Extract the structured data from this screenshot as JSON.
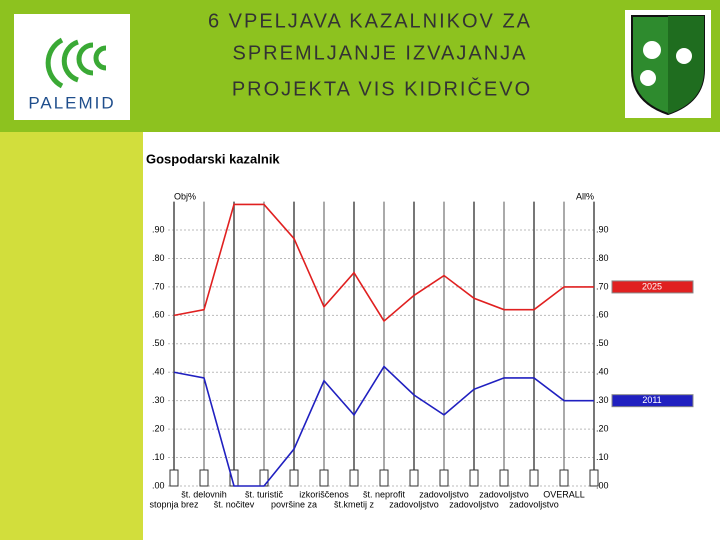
{
  "header": {
    "title_lines": [
      "6 VPELJAVA KAZALNIKOV ZA",
      "SPREMLJANJE IZVAJANJA",
      "PROJEKTA  VIS  KIDRIČEVO"
    ],
    "logo": "PALEMID"
  },
  "chart_data": {
    "type": "line",
    "title": "Gospodarski kazalnik",
    "y_label": "Obj%",
    "y2_label": "All%",
    "categories": [
      "stopnja brez",
      "št. delovnih",
      "št. nočitev",
      "št. turistič",
      "površine za",
      "izkoriščenos",
      "št.kmetij z",
      "št. neprofit",
      "zadovoljstvo",
      "zadovoljstvo",
      "zadovoljstvo",
      "zadovoljstvo",
      "zadovoljstvo",
      "OVERALL",
      null
    ],
    "series": [
      {
        "name": "2025",
        "color": "#e02020",
        "values": [
          0.6,
          0.62,
          0.99,
          0.99,
          0.87,
          0.63,
          0.75,
          0.58,
          0.67,
          0.74,
          0.66,
          0.62,
          0.62,
          0.7,
          0.7
        ]
      },
      {
        "name": "2011",
        "color": "#2020c0",
        "values": [
          0.4,
          0.38,
          0.0,
          0.0,
          0.13,
          0.37,
          0.25,
          0.42,
          0.32,
          0.25,
          0.34,
          0.38,
          0.38,
          0.3,
          0.3
        ]
      }
    ],
    "ylim": [
      0,
      1
    ],
    "yticks": [
      {
        "value": 0,
        "label": ".00"
      },
      {
        "value": 0.1,
        "label": ".10"
      },
      {
        "value": 0.2,
        "label": ".20"
      },
      {
        "value": 0.3,
        "label": ".30"
      },
      {
        "value": 0.4,
        "label": ".40"
      },
      {
        "value": 0.5,
        "label": ".50"
      },
      {
        "value": 0.6,
        "label": ".60"
      },
      {
        "value": 0.7,
        "label": ".70"
      },
      {
        "value": 0.8,
        "label": ".80"
      },
      {
        "value": 0.9,
        "label": ".90"
      }
    ],
    "grid": true
  }
}
